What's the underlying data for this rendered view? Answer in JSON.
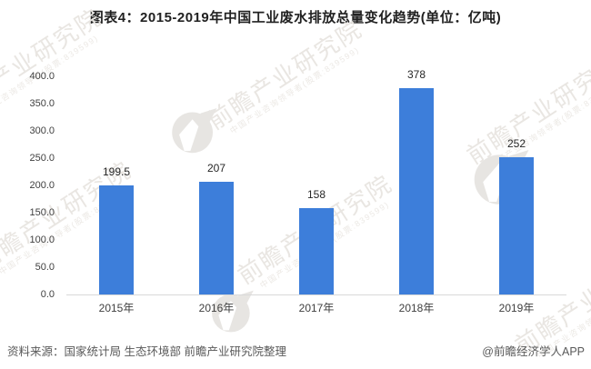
{
  "title": "图表4：2015-2019年中国工业废水排放总量变化趋势(单位：亿吨)",
  "chart_data": {
    "type": "bar",
    "title": "图表4：2015-2019年中国工业废水排放总量变化趋势",
    "unit": "亿吨",
    "categories": [
      "2015年",
      "2016年",
      "2017年",
      "2018年",
      "2019年"
    ],
    "values": [
      199.5,
      207,
      158,
      378,
      252
    ],
    "value_labels": [
      "199.5",
      "207",
      "158",
      "378",
      "252"
    ],
    "ylim": [
      0,
      400
    ],
    "yticks": [
      400,
      350,
      300,
      250,
      200,
      150,
      100,
      50,
      0
    ],
    "ytick_labels": [
      "400.0",
      "350.0",
      "300.0",
      "250.0",
      "200.0",
      "150.0",
      "100.0",
      "50.0",
      "0.0"
    ],
    "grid": false,
    "legend": "none",
    "bar_color": "#3d7eda"
  },
  "footer": {
    "source": "资料来源：国家统计局 生态环境部 前瞻产业研究院整理",
    "credit": "@前瞻经济学人APP"
  },
  "watermark": {
    "line1": "前瞻产业研究院",
    "line2": "中国产业咨询领导者(股票:839599)"
  },
  "colors": {
    "bar": "#3d7eda",
    "axis_line": "#d9d9d9",
    "title_text": "#212121",
    "tick_text": "#404040",
    "footer_text": "#595959",
    "watermark": "#e9e6e2"
  }
}
